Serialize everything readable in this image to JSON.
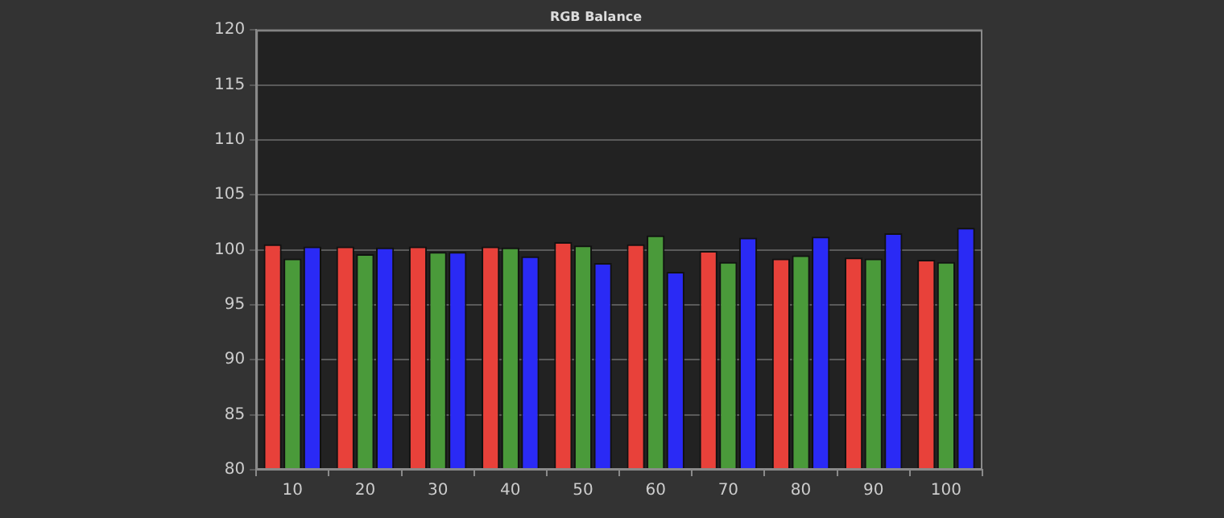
{
  "chart_data": {
    "type": "bar",
    "title": "RGB Balance",
    "categories": [
      "10",
      "20",
      "30",
      "40",
      "50",
      "60",
      "70",
      "80",
      "90",
      "100"
    ],
    "series": [
      {
        "color": "#e8413a",
        "values": [
          100.5,
          100.3,
          100.3,
          100.3,
          100.7,
          100.5,
          99.9,
          99.2,
          99.3,
          99.1
        ]
      },
      {
        "color": "#4a9a3a",
        "values": [
          99.2,
          99.6,
          99.8,
          100.2,
          100.4,
          101.3,
          98.9,
          99.5,
          99.2,
          98.9
        ]
      },
      {
        "color": "#2a2af5",
        "values": [
          100.3,
          100.2,
          99.8,
          99.4,
          98.8,
          98.0,
          101.1,
          101.2,
          101.5,
          102.0
        ]
      }
    ],
    "ylim": [
      80,
      120
    ],
    "yticks": [
      80,
      85,
      90,
      95,
      100,
      105,
      110,
      115,
      120
    ],
    "grid": "y",
    "legend": false
  }
}
